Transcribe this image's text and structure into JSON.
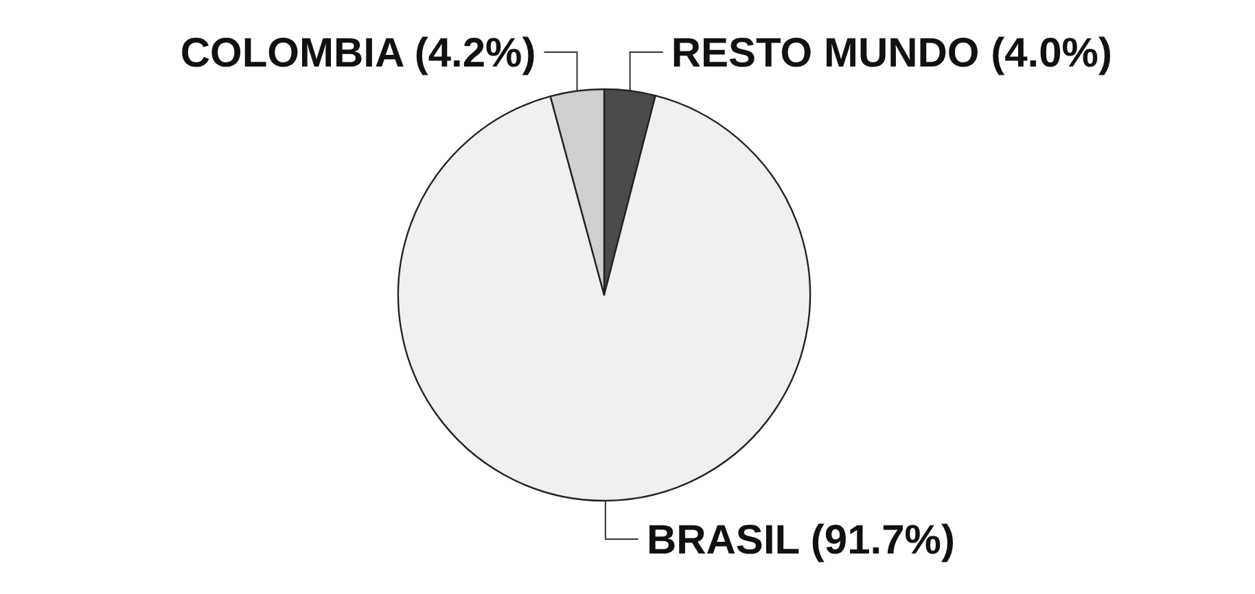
{
  "chart_data": {
    "type": "pie",
    "categories": [
      "RESTO MUNDO",
      "BRASIL",
      "COLOMBIA"
    ],
    "values": [
      4.0,
      91.7,
      4.2
    ],
    "value_labels": [
      "(4.0%)",
      "(91.7%)",
      "(4.2%)"
    ],
    "colors": [
      "#4a4a4a",
      "#f0f0f0",
      "#d0d0d0"
    ]
  }
}
